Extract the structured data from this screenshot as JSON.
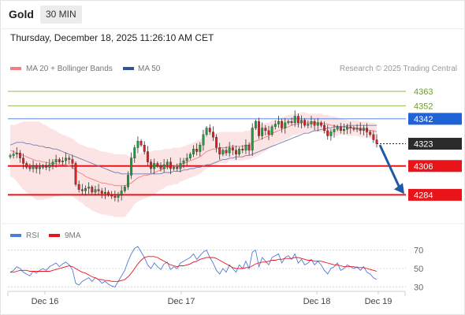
{
  "header": {
    "title": "Gold",
    "interval": "30 MIN",
    "datetime": "Thursday, December 18, 2025 11:26:10 AM CET"
  },
  "chart_data": {
    "type": "candlestick",
    "instrument": "Gold",
    "legend": [
      {
        "name": "MA 20 + Bollinger Bands",
        "color": "#f08080"
      },
      {
        "name": "MA 50",
        "color": "#2f5597"
      }
    ],
    "copyright": "Research © 2025 Trading Central",
    "xaxis": {
      "ticks": [
        "Dec 16",
        "Dec 17",
        "Dec 18",
        "Dec 19"
      ]
    },
    "yaxis": {
      "range": [
        4262,
        4375
      ]
    },
    "levels": [
      {
        "value": 4363,
        "label": "4363",
        "color": "#6aa121",
        "style": "thin",
        "kind": "target"
      },
      {
        "value": 4352,
        "label": "4352",
        "color": "#6aa121",
        "style": "thin",
        "kind": "target"
      },
      {
        "value": 4342,
        "label": "4342",
        "color": "#1f63d6",
        "style": "thin",
        "kind": "pivot"
      },
      {
        "value": 4323,
        "label": "4323",
        "color": "#2b2b2b",
        "style": "dotted",
        "kind": "last"
      },
      {
        "value": 4306,
        "label": "4306",
        "color": "#e8141a",
        "style": "thick",
        "kind": "target"
      },
      {
        "value": 4284,
        "label": "4284",
        "color": "#e8141a",
        "style": "thick",
        "kind": "target"
      }
    ],
    "arrow": {
      "from": 4322,
      "to": 4284,
      "direction": "down",
      "color": "#1f5aa6"
    },
    "close": [
      4314,
      4315,
      4316,
      4312,
      4308,
      4305,
      4304,
      4306,
      4304,
      4305,
      4306,
      4305,
      4307,
      4309,
      4311,
      4309,
      4310,
      4312,
      4311,
      4308,
      4292,
      4288,
      4287,
      4289,
      4290,
      4286,
      4288,
      4287,
      4285,
      4286,
      4284,
      4283,
      4282,
      4284,
      4287,
      4290,
      4299,
      4312,
      4320,
      4325,
      4322,
      4317,
      4309,
      4304,
      4308,
      4306,
      4304,
      4307,
      4309,
      4304,
      4305,
      4304,
      4308,
      4310,
      4312,
      4315,
      4319,
      4317,
      4322,
      4330,
      4335,
      4332,
      4328,
      4320,
      4315,
      4318,
      4316,
      4320,
      4318,
      4315,
      4319,
      4318,
      4322,
      4318,
      4335,
      4340,
      4329,
      4335,
      4333,
      4330,
      4336,
      4338,
      4340,
      4335,
      4339,
      4340,
      4339,
      4344,
      4339,
      4341,
      4337,
      4338,
      4340,
      4337,
      4339,
      4337,
      4333,
      4329,
      4332,
      4334,
      4336,
      4333,
      4334,
      4336,
      4335,
      4334,
      4335,
      4333,
      4335,
      4332,
      4330,
      4326,
      4323
    ],
    "ma20": [
      4318,
      4317,
      4316,
      4315,
      4314,
      4313,
      4312,
      4311,
      4310,
      4310,
      4309,
      4309,
      4308,
      4308,
      4308,
      4307,
      4307,
      4307,
      4306,
      4305,
      4303,
      4301,
      4300,
      4298,
      4297,
      4296,
      4295,
      4294,
      4293,
      4293,
      4292,
      4292,
      4291,
      4291,
      4291,
      4291,
      4292,
      4293,
      4295,
      4297,
      4298,
      4299,
      4299,
      4300,
      4301,
      4302,
      4303,
      4304,
      4305,
      4305,
      4306,
      4306,
      4307,
      4308,
      4309,
      4310,
      4311,
      4312,
      4313,
      4315,
      4317,
      4318,
      4319,
      4319,
      4320,
      4320,
      4320,
      4321,
      4321,
      4321,
      4321,
      4321,
      4322,
      4322,
      4324,
      4325,
      4326,
      4327,
      4328,
      4329,
      4331,
      4332,
      4333,
      4334,
      4335,
      4336,
      4337,
      4338,
      4338,
      4339,
      4339,
      4339,
      4339,
      4339,
      4339,
      4339,
      4338,
      4338,
      4337,
      4337,
      4336,
      4336,
      4336,
      4335,
      4335,
      4335,
      4335,
      4334,
      4334,
      4334,
      4333,
      4333,
      4332
    ],
    "ma50": [
      4322,
      4323,
      4324,
      4324,
      4324,
      4323,
      4323,
      4322,
      4322,
      4321,
      4321,
      4320,
      4320,
      4319,
      4319,
      4318,
      4317,
      4316,
      4315,
      4314,
      4313,
      4312,
      4311,
      4310,
      4309,
      4308,
      4307,
      4306,
      4305,
      4304,
      4303,
      4302,
      4301,
      4301,
      4300,
      4300,
      4300,
      4300,
      4300,
      4300,
      4300,
      4300,
      4300,
      4300,
      4300,
      4300,
      4300,
      4301,
      4301,
      4301,
      4302,
      4302,
      4302,
      4303,
      4303,
      4304,
      4304,
      4305,
      4305,
      4306,
      4307,
      4307,
      4308,
      4309,
      4310,
      4311,
      4311,
      4312,
      4312,
      4313,
      4313,
      4313,
      4314,
      4314,
      4315,
      4316,
      4317,
      4318,
      4319,
      4320,
      4321,
      4322,
      4323,
      4324,
      4325,
      4326,
      4327,
      4328,
      4329,
      4330,
      4331,
      4331,
      4332,
      4333,
      4333,
      4334,
      4334,
      4335,
      4335,
      4336,
      4336,
      4336,
      4336,
      4337,
      4337,
      4337,
      4337,
      4337,
      4337,
      4337,
      4337,
      4337,
      4337
    ],
    "bb_width": [
      20,
      20,
      22,
      24,
      26,
      27,
      28,
      29,
      30,
      30,
      29,
      28,
      27,
      26,
      25,
      24,
      23,
      22,
      22,
      22,
      22,
      22,
      22,
      23,
      23,
      24,
      24,
      24,
      24,
      24,
      24,
      24,
      24,
      24,
      24,
      24,
      22,
      20,
      18,
      18,
      18,
      18,
      17,
      17,
      17,
      16,
      15,
      15,
      14,
      14,
      14,
      14,
      13,
      13,
      13,
      13,
      13,
      13,
      13,
      13,
      13,
      13,
      13,
      12,
      12,
      12,
      12,
      11,
      11,
      11,
      11,
      11,
      11,
      11,
      12,
      12,
      12,
      11,
      11,
      10,
      10,
      9,
      9,
      9,
      9,
      9,
      8,
      8,
      8,
      8,
      8,
      7,
      7,
      7,
      7,
      7,
      7,
      7,
      7,
      7,
      7,
      6,
      6,
      6,
      6,
      6,
      6,
      6,
      6,
      6,
      6,
      6,
      6
    ],
    "rsi_panel": {
      "legend": [
        {
          "name": "RSI",
          "color": "#4f7bd8"
        },
        {
          "name": "9MA",
          "color": "#e8141a"
        }
      ],
      "levels": [
        70,
        50,
        30
      ],
      "ylim": [
        20,
        80
      ],
      "rsi": [
        46,
        48,
        52,
        50,
        46,
        44,
        42,
        47,
        45,
        48,
        50,
        48,
        52,
        54,
        56,
        52,
        55,
        57,
        54,
        49,
        34,
        32,
        36,
        38,
        40,
        36,
        40,
        38,
        34,
        36,
        33,
        31,
        30,
        36,
        42,
        48,
        58,
        66,
        72,
        74,
        68,
        62,
        54,
        50,
        56,
        52,
        49,
        55,
        57,
        49,
        52,
        50,
        56,
        58,
        60,
        62,
        66,
        60,
        64,
        68,
        70,
        62,
        56,
        48,
        44,
        50,
        46,
        54,
        50,
        46,
        54,
        50,
        58,
        50,
        68,
        70,
        52,
        62,
        58,
        54,
        62,
        64,
        66,
        56,
        62,
        64,
        60,
        66,
        56,
        60,
        54,
        56,
        60,
        54,
        58,
        54,
        48,
        44,
        50,
        52,
        56,
        48,
        50,
        54,
        52,
        50,
        52,
        48,
        52,
        46,
        44,
        40,
        38
      ],
      "ma9": [
        46,
        46,
        47,
        48,
        48,
        48,
        47,
        47,
        47,
        47,
        47,
        47,
        47,
        48,
        49,
        50,
        51,
        52,
        53,
        52,
        50,
        48,
        46,
        45,
        43,
        41,
        40,
        38,
        38,
        37,
        37,
        36,
        36,
        36,
        37,
        38,
        41,
        45,
        50,
        55,
        59,
        62,
        63,
        63,
        63,
        62,
        60,
        58,
        56,
        54,
        53,
        52,
        53,
        53,
        54,
        55,
        57,
        58,
        60,
        61,
        62,
        62,
        62,
        61,
        59,
        57,
        55,
        53,
        51,
        50,
        50,
        50,
        51,
        51,
        53,
        55,
        56,
        57,
        57,
        58,
        59,
        59,
        60,
        60,
        61,
        61,
        61,
        62,
        62,
        61,
        60,
        59,
        59,
        58,
        58,
        58,
        57,
        56,
        55,
        54,
        54,
        53,
        52,
        52,
        52,
        52,
        51,
        51,
        51,
        50,
        49,
        48,
        47
      ]
    }
  }
}
